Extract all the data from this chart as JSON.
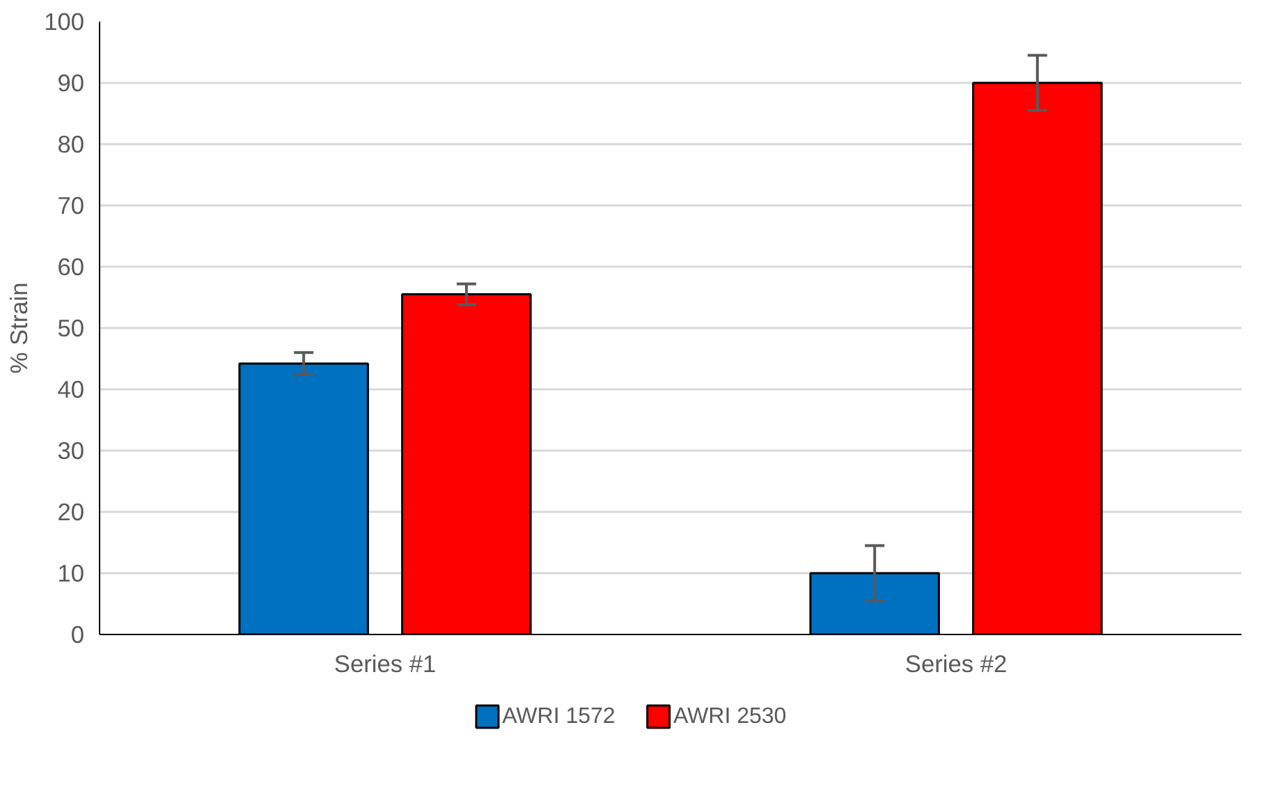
{
  "chart_data": {
    "type": "bar",
    "ylabel": "% Strain",
    "categories": [
      "Series #1",
      "Series #2"
    ],
    "series": [
      {
        "name": "AWRI 1572",
        "color": "#0070c0",
        "values": [
          44.2,
          10
        ],
        "errors": [
          1.8,
          4.5
        ]
      },
      {
        "name": "AWRI 2530",
        "color": "#ff0000",
        "values": [
          55.5,
          90
        ],
        "errors": [
          1.7,
          4.5
        ]
      }
    ],
    "ylim": [
      0,
      100
    ],
    "yticks": [
      0,
      10,
      20,
      30,
      40,
      50,
      60,
      70,
      80,
      90,
      100
    ],
    "grid": "y",
    "legend": "bottom"
  }
}
